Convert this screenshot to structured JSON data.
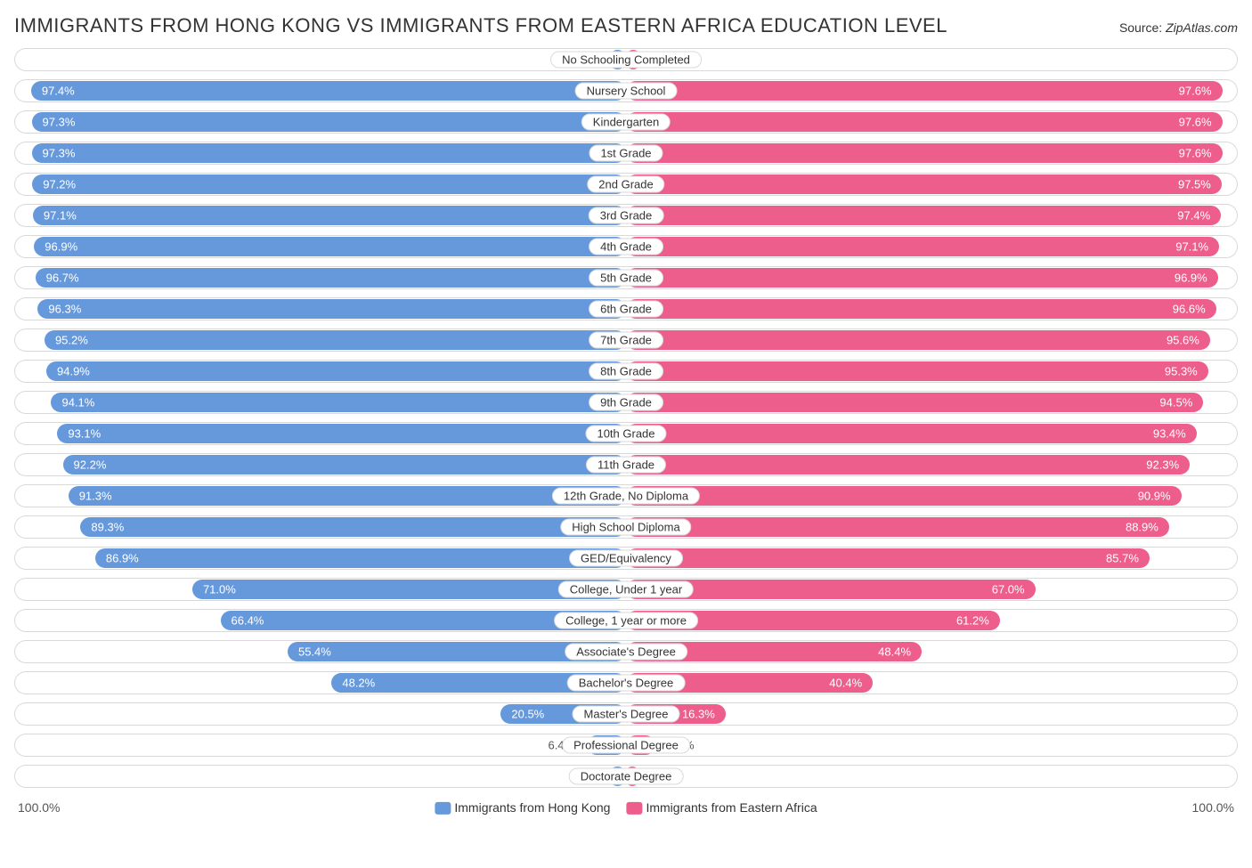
{
  "title": "IMMIGRANTS FROM HONG KONG VS IMMIGRANTS FROM EASTERN AFRICA EDUCATION LEVEL",
  "source_label": "Source:",
  "source_name": "ZipAtlas.com",
  "chart": {
    "type": "diverging-bar",
    "axis_max_pct": 100.0,
    "axis_left_label": "100.0%",
    "axis_right_label": "100.0%",
    "colors": {
      "left_bar": "#6699dc",
      "right_bar": "#ed5e8c",
      "row_border": "#d9d9d9",
      "value_text_inside": "#ffffff",
      "value_text_outside": "#555555",
      "category_text": "#333333",
      "background": "#ffffff"
    },
    "legend": {
      "left": {
        "label": "Immigrants from Hong Kong",
        "color": "#6699dc"
      },
      "right": {
        "label": "Immigrants from Eastern Africa",
        "color": "#ed5e8c"
      }
    },
    "value_label_inside_threshold_pct": 12,
    "categories": [
      {
        "label": "No Schooling Completed",
        "left_pct": 2.7,
        "left_text": "2.7%",
        "right_pct": 2.4,
        "right_text": "2.4%"
      },
      {
        "label": "Nursery School",
        "left_pct": 97.4,
        "left_text": "97.4%",
        "right_pct": 97.6,
        "right_text": "97.6%"
      },
      {
        "label": "Kindergarten",
        "left_pct": 97.3,
        "left_text": "97.3%",
        "right_pct": 97.6,
        "right_text": "97.6%"
      },
      {
        "label": "1st Grade",
        "left_pct": 97.3,
        "left_text": "97.3%",
        "right_pct": 97.6,
        "right_text": "97.6%"
      },
      {
        "label": "2nd Grade",
        "left_pct": 97.2,
        "left_text": "97.2%",
        "right_pct": 97.5,
        "right_text": "97.5%"
      },
      {
        "label": "3rd Grade",
        "left_pct": 97.1,
        "left_text": "97.1%",
        "right_pct": 97.4,
        "right_text": "97.4%"
      },
      {
        "label": "4th Grade",
        "left_pct": 96.9,
        "left_text": "96.9%",
        "right_pct": 97.1,
        "right_text": "97.1%"
      },
      {
        "label": "5th Grade",
        "left_pct": 96.7,
        "left_text": "96.7%",
        "right_pct": 96.9,
        "right_text": "96.9%"
      },
      {
        "label": "6th Grade",
        "left_pct": 96.3,
        "left_text": "96.3%",
        "right_pct": 96.6,
        "right_text": "96.6%"
      },
      {
        "label": "7th Grade",
        "left_pct": 95.2,
        "left_text": "95.2%",
        "right_pct": 95.6,
        "right_text": "95.6%"
      },
      {
        "label": "8th Grade",
        "left_pct": 94.9,
        "left_text": "94.9%",
        "right_pct": 95.3,
        "right_text": "95.3%"
      },
      {
        "label": "9th Grade",
        "left_pct": 94.1,
        "left_text": "94.1%",
        "right_pct": 94.5,
        "right_text": "94.5%"
      },
      {
        "label": "10th Grade",
        "left_pct": 93.1,
        "left_text": "93.1%",
        "right_pct": 93.4,
        "right_text": "93.4%"
      },
      {
        "label": "11th Grade",
        "left_pct": 92.2,
        "left_text": "92.2%",
        "right_pct": 92.3,
        "right_text": "92.3%"
      },
      {
        "label": "12th Grade, No Diploma",
        "left_pct": 91.3,
        "left_text": "91.3%",
        "right_pct": 90.9,
        "right_text": "90.9%"
      },
      {
        "label": "High School Diploma",
        "left_pct": 89.3,
        "left_text": "89.3%",
        "right_pct": 88.9,
        "right_text": "88.9%"
      },
      {
        "label": "GED/Equivalency",
        "left_pct": 86.9,
        "left_text": "86.9%",
        "right_pct": 85.7,
        "right_text": "85.7%"
      },
      {
        "label": "College, Under 1 year",
        "left_pct": 71.0,
        "left_text": "71.0%",
        "right_pct": 67.0,
        "right_text": "67.0%"
      },
      {
        "label": "College, 1 year or more",
        "left_pct": 66.4,
        "left_text": "66.4%",
        "right_pct": 61.2,
        "right_text": "61.2%"
      },
      {
        "label": "Associate's Degree",
        "left_pct": 55.4,
        "left_text": "55.4%",
        "right_pct": 48.4,
        "right_text": "48.4%"
      },
      {
        "label": "Bachelor's Degree",
        "left_pct": 48.2,
        "left_text": "48.2%",
        "right_pct": 40.4,
        "right_text": "40.4%"
      },
      {
        "label": "Master's Degree",
        "left_pct": 20.5,
        "left_text": "20.5%",
        "right_pct": 16.3,
        "right_text": "16.3%"
      },
      {
        "label": "Professional Degree",
        "left_pct": 6.4,
        "left_text": "6.4%",
        "right_pct": 4.8,
        "right_text": "4.8%"
      },
      {
        "label": "Doctorate Degree",
        "left_pct": 2.8,
        "left_text": "2.8%",
        "right_pct": 2.1,
        "right_text": "2.1%"
      }
    ]
  }
}
